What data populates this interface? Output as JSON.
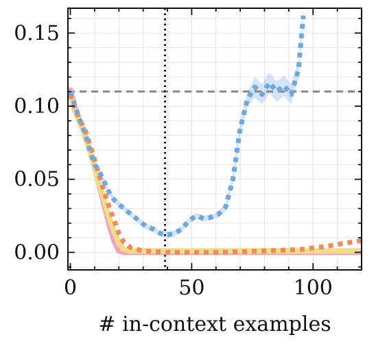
{
  "chart_data": {
    "type": "line",
    "title": "",
    "xlabel": "# in-context examples",
    "ylabel": "",
    "xlim": [
      -1,
      120
    ],
    "ylim": [
      -0.012,
      0.167
    ],
    "x_ticks": [
      0,
      50,
      100
    ],
    "x_tick_labels": [
      "0",
      "50",
      "100"
    ],
    "y_ticks": [
      0.0,
      0.05,
      0.1,
      0.15
    ],
    "y_tick_labels": [
      "0.00",
      "0.05",
      "0.10",
      "0.15"
    ],
    "grid": true,
    "legend": "none",
    "reference_lines": [
      {
        "orientation": "horizontal",
        "value": 0.11,
        "style": "dashed",
        "color": "#888888"
      },
      {
        "orientation": "vertical",
        "value": 39,
        "style": "dotted",
        "color": "#111111"
      }
    ],
    "series": [
      {
        "color": "#f4a3bf",
        "style": "solid",
        "x": [
          0,
          2,
          5,
          8,
          10,
          12,
          14,
          16,
          18,
          20,
          22,
          30,
          60,
          90,
          120
        ],
        "y": [
          0.111,
          0.098,
          0.085,
          0.07,
          0.058,
          0.045,
          0.032,
          0.019,
          0.008,
          0.001,
          0.0,
          0.0,
          0.0,
          0.0,
          0.0
        ]
      },
      {
        "color": "#f0dc8a",
        "style": "solid",
        "x": [
          0,
          2,
          5,
          8,
          10,
          12,
          14,
          16,
          18,
          20,
          22,
          25,
          30,
          60,
          90,
          120
        ],
        "y": [
          0.108,
          0.096,
          0.084,
          0.07,
          0.058,
          0.046,
          0.035,
          0.024,
          0.014,
          0.006,
          0.002,
          0.001,
          0.001,
          0.001,
          0.001,
          0.001
        ]
      },
      {
        "color": "#ee8a5e",
        "style": "dotted",
        "x": [
          0,
          2,
          4,
          6,
          8,
          10,
          12,
          14,
          16,
          18,
          20,
          22,
          25,
          30,
          40,
          60,
          80,
          95,
          105,
          112,
          120
        ],
        "y": [
          0.108,
          0.098,
          0.09,
          0.084,
          0.074,
          0.063,
          0.052,
          0.041,
          0.031,
          0.022,
          0.013,
          0.007,
          0.003,
          0.001,
          0.0,
          0.0,
          0.001,
          0.002,
          0.004,
          0.006,
          0.008
        ]
      },
      {
        "color": "#6fa8dc",
        "style": "dotted",
        "x": [
          0,
          2,
          4,
          6,
          8,
          10,
          12,
          14,
          16,
          18,
          20,
          22,
          25,
          28,
          31,
          34,
          37,
          40,
          43,
          46,
          49,
          52,
          55,
          58,
          61,
          64,
          67,
          70,
          73,
          76,
          79,
          82,
          85,
          88,
          91,
          94,
          96
        ],
        "y": [
          0.11,
          0.1,
          0.09,
          0.082,
          0.07,
          0.06,
          0.055,
          0.048,
          0.041,
          0.036,
          0.033,
          0.03,
          0.026,
          0.022,
          0.018,
          0.016,
          0.013,
          0.012,
          0.013,
          0.016,
          0.022,
          0.025,
          0.023,
          0.024,
          0.026,
          0.031,
          0.05,
          0.085,
          0.105,
          0.113,
          0.108,
          0.116,
          0.11,
          0.114,
          0.108,
          0.125,
          0.162
        ]
      }
    ],
    "bands": [
      {
        "color": "#9fc2e8",
        "x": [
          0,
          2,
          4,
          6,
          8,
          10,
          12,
          14,
          16,
          18,
          20,
          22,
          25,
          28,
          31,
          34,
          37,
          40,
          43,
          46,
          49,
          52,
          55,
          58,
          61,
          64,
          67,
          70,
          73,
          76,
          79,
          82,
          85,
          88,
          91,
          94,
          96
        ],
        "low": [
          0.106,
          0.097,
          0.087,
          0.079,
          0.067,
          0.058,
          0.053,
          0.046,
          0.039,
          0.034,
          0.031,
          0.028,
          0.024,
          0.02,
          0.016,
          0.014,
          0.011,
          0.01,
          0.011,
          0.014,
          0.02,
          0.023,
          0.021,
          0.022,
          0.024,
          0.028,
          0.046,
          0.08,
          0.1,
          0.106,
          0.101,
          0.109,
          0.103,
          0.107,
          0.101,
          0.119,
          0.157
        ],
        "high": [
          0.114,
          0.103,
          0.093,
          0.085,
          0.073,
          0.062,
          0.057,
          0.05,
          0.043,
          0.038,
          0.035,
          0.032,
          0.028,
          0.024,
          0.02,
          0.018,
          0.015,
          0.014,
          0.015,
          0.018,
          0.024,
          0.027,
          0.025,
          0.026,
          0.028,
          0.034,
          0.054,
          0.09,
          0.11,
          0.12,
          0.115,
          0.123,
          0.117,
          0.121,
          0.115,
          0.131,
          0.167
        ]
      }
    ]
  }
}
